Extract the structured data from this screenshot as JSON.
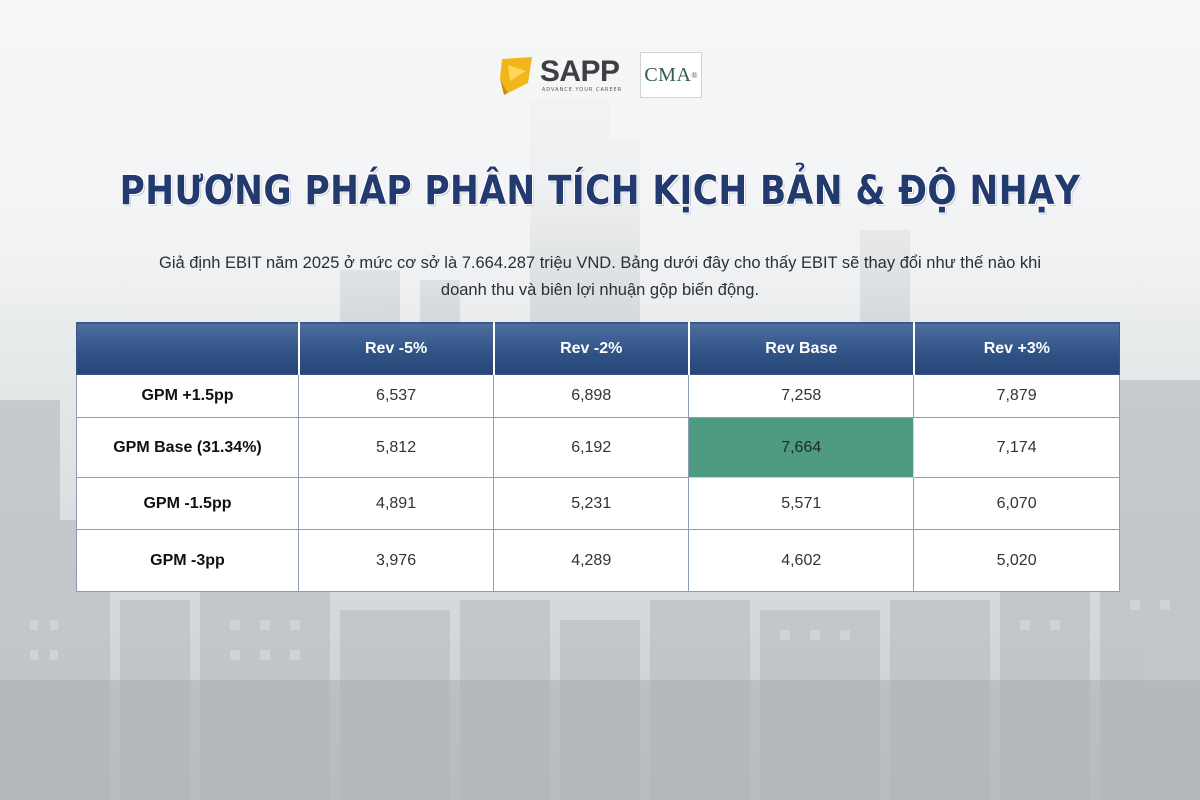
{
  "brand": {
    "sapp_name": "SAPP",
    "sapp_tagline": "ADVANCE YOUR CAREER",
    "cma_label": "CMA",
    "cma_mark": "®",
    "brand_color": "#f2b51c"
  },
  "title": "PHƯƠNG PHÁP PHÂN TÍCH KỊCH BẢN & ĐỘ NHẠY",
  "description_line1": "Giả định EBIT năm 2025 ở mức cơ sở là 7.664.287 triệu VND. Bảng dưới đây cho thấy EBIT sẽ thay đổi như thế nào khi",
  "description_line2": "doanh thu và biên lợi nhuận gộp biến động.",
  "table": {
    "corner": "",
    "columns": [
      "Rev -5%",
      "Rev -2%",
      "Rev Base",
      "Rev +3%"
    ],
    "rows": [
      {
        "label": "GPM +1.5pp",
        "values": [
          "6,537",
          "6,898",
          "7,258",
          "7,879"
        ]
      },
      {
        "label": "GPM Base (31.34%)",
        "values": [
          "5,812",
          "6,192",
          "7,664",
          "7,174"
        ]
      },
      {
        "label": "GPM -1.5pp",
        "values": [
          "4,891",
          "5,231",
          "5,571",
          "6,070"
        ]
      },
      {
        "label": "GPM -3pp",
        "values": [
          "3,976",
          "4,289",
          "4,602",
          "5,020"
        ]
      }
    ],
    "highlight_color": "#4e9b7f",
    "header_color": "#2f5184"
  }
}
